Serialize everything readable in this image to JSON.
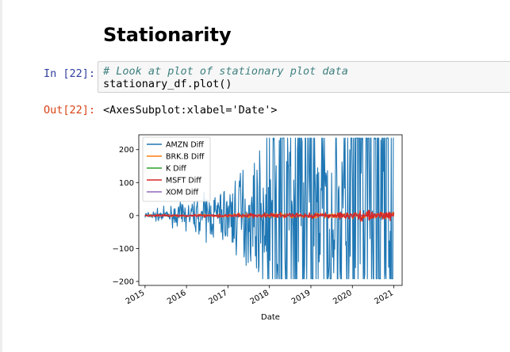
{
  "markdown": {
    "heading": "Stationarity"
  },
  "cell_in": {
    "prompt": "In [22]:",
    "comment": "# Look at plot of stationary plot data",
    "code": "stationary_df.plot()"
  },
  "cell_out": {
    "prompt": "Out[22]:",
    "text": "<AxesSubplot:xlabel='Date'>"
  },
  "chart_data": {
    "type": "line",
    "title": "",
    "xlabel": "Date",
    "ylabel": "",
    "xlim": [
      2014.85,
      2021.2
    ],
    "ylim": [
      -212,
      245
    ],
    "x_ticks": [
      "2015",
      "2016",
      "2017",
      "2018",
      "2019",
      "2020",
      "2021"
    ],
    "y_ticks": [
      -200,
      -100,
      0,
      100,
      200
    ],
    "y_tick_labels": [
      "−200",
      "−100",
      "0",
      "100",
      "200"
    ],
    "grid": false,
    "legend_position": "upper left",
    "series": [
      {
        "name": "AMZN Diff",
        "color": "#1f77b4"
      },
      {
        "name": "BRK.B Diff",
        "color": "#ff7f0e"
      },
      {
        "name": "K Diff",
        "color": "#2ca02c"
      },
      {
        "name": "MSFT Diff",
        "color": "#d62728"
      },
      {
        "name": "XOM Diff",
        "color": "#9467bd"
      }
    ]
  }
}
